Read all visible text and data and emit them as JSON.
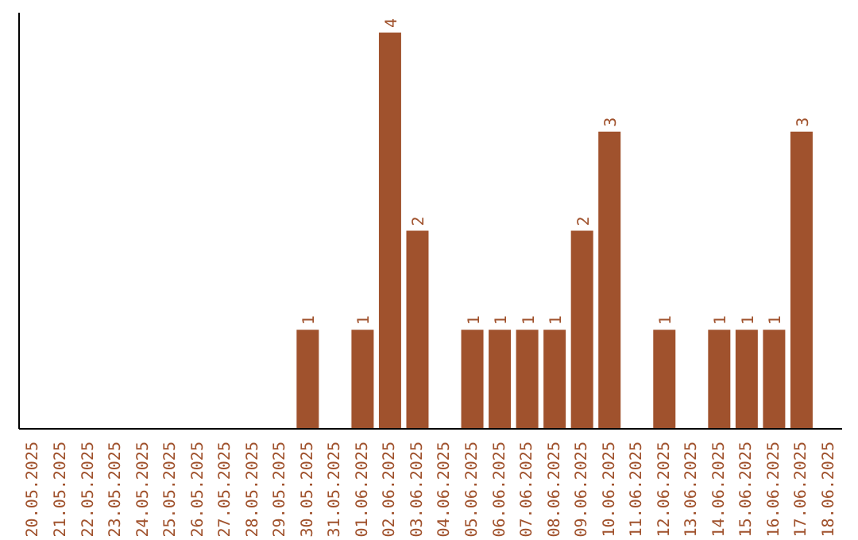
{
  "chart_data": {
    "type": "bar",
    "categories": [
      "20.05.2025",
      "21.05.2025",
      "22.05.2025",
      "23.05.2025",
      "24.05.2025",
      "25.05.2025",
      "26.05.2025",
      "27.05.2025",
      "28.05.2025",
      "29.05.2025",
      "30.05.2025",
      "31.05.2025",
      "01.06.2025",
      "02.06.2025",
      "03.06.2025",
      "04.06.2025",
      "05.06.2025",
      "06.06.2025",
      "07.06.2025",
      "08.06.2025",
      "09.06.2025",
      "10.06.2025",
      "11.06.2025",
      "12.06.2025",
      "13.06.2025",
      "14.06.2025",
      "15.06.2025",
      "16.06.2025",
      "17.06.2025",
      "18.06.2025"
    ],
    "values": [
      0,
      0,
      0,
      0,
      0,
      0,
      0,
      0,
      0,
      0,
      1,
      0,
      1,
      4,
      2,
      0,
      1,
      1,
      1,
      1,
      2,
      3,
      0,
      1,
      0,
      1,
      1,
      1,
      3,
      0
    ],
    "value_labels": [
      null,
      null,
      null,
      null,
      null,
      null,
      null,
      null,
      null,
      null,
      "1",
      null,
      "1",
      "4",
      "2",
      null,
      "1",
      "1",
      "1",
      "1",
      "2",
      "3",
      null,
      "1",
      null,
      "1",
      "1",
      "1",
      "3",
      null
    ],
    "color": "#a0522d",
    "ylim": [
      0,
      4.2
    ],
    "tick_labels": "x",
    "grid": false,
    "legend": false
  }
}
